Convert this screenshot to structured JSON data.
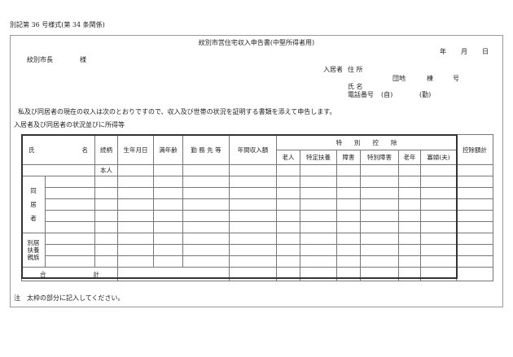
{
  "form_number": "別記第 36 号様式(第 34 条関係)",
  "title": "紋別市営住宅収入申告書(中堅所得者用)",
  "date": {
    "year": "年",
    "month": "月",
    "day": "日"
  },
  "addressee": {
    "name": "紋別市長",
    "honorific": "様"
  },
  "applicant": {
    "label": "入居者",
    "address_label": "住 所",
    "danchi": "団地",
    "tou": "棟",
    "gou": "号",
    "name_label": "氏 名",
    "phone_label": "電話番号",
    "phone_home": "(自)",
    "phone_work": "(勤)"
  },
  "statement": "私及び同居者の現在の収入は次のとおりですので、収入及び世帯の状況を証明する書類を添えて申告します。",
  "section_label": "入居者及び同居者の状況並びに所得等",
  "table": {
    "headers": {
      "name_1": "氏",
      "name_2": "名",
      "relation": "続柄",
      "birth": "生年月日",
      "age": "満年齢",
      "work": "勤 務 先 等",
      "income": "年間収入額",
      "special": "特　　別　　控　　除",
      "total_deduction": "控除額計"
    },
    "sub_headers": [
      "老人",
      "特定扶養",
      "障害",
      "特別障害",
      "老年",
      "寡婦(夫)"
    ],
    "self_label": "本人",
    "cohabitant_label": "同\n居\n者",
    "dependent_label": "別居\n扶養\n親族",
    "total_1": "合",
    "total_2": "計"
  },
  "note": "注　太枠の部分に記入してください。"
}
